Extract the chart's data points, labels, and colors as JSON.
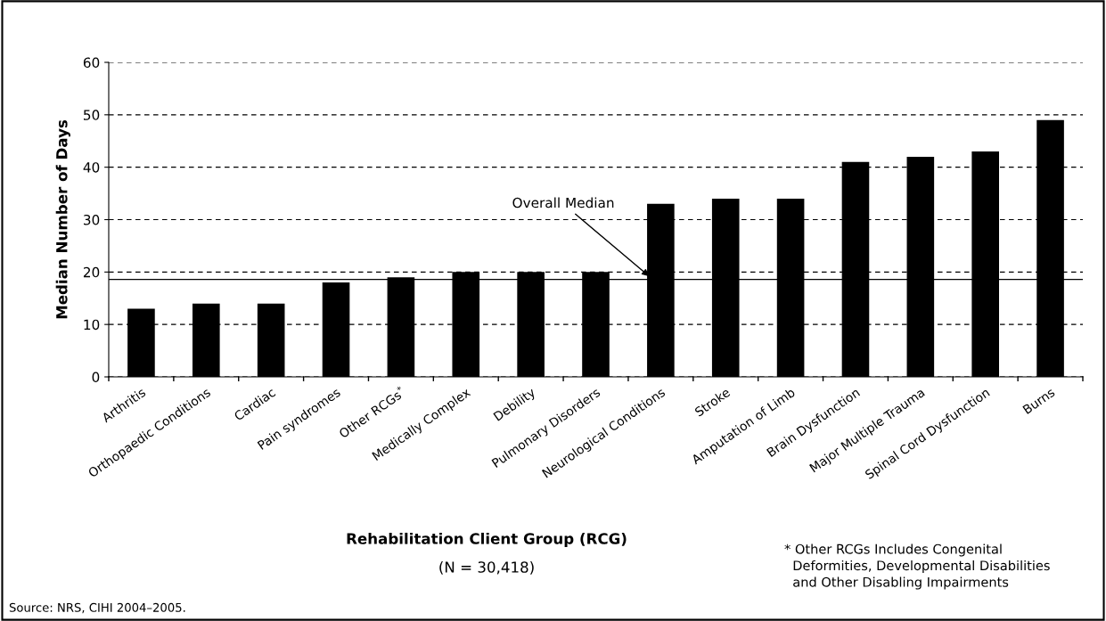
{
  "chart_data": {
    "type": "bar",
    "xlabel": "Rehabilitation Client Group (RCG)",
    "ylabel": "Median Number of Days",
    "categories": [
      "Arthritis",
      "Orthopaedic Conditions",
      "Cardiac",
      "Pain syndromes",
      "Other RCGs$^{*}$",
      "Medically Complex",
      "Debility",
      "Pulmonary Disorders",
      "Neurological Conditions",
      "Stroke",
      "Amputation of Limb",
      "Brain Dysfunction",
      "Major Multiple Trauma",
      "Spinal Cord Dysfunction",
      "Burns"
    ],
    "values": [
      13,
      14,
      14,
      18,
      19,
      20,
      20,
      20,
      33,
      34,
      34,
      41,
      42,
      43,
      49
    ],
    "color": "#000000",
    "ylim": [
      0,
      60
    ],
    "yticks": [
      0,
      10,
      20,
      30,
      40,
      50,
      60
    ],
    "grid": "y",
    "ref_lines": [
      {
        "axis": "y",
        "value": 18.6,
        "label": "Overall Median",
        "color": "#000000",
        "line_style": "solid"
      }
    ],
    "annotations": [
      "(N = 30,418)",
      "* Other RCGs Includes Congenital\n  Deformities, Developmental Disabilities\n  and Other Disabling Impairments",
      "Source: NRS, CIHI 2004–2005."
    ]
  }
}
